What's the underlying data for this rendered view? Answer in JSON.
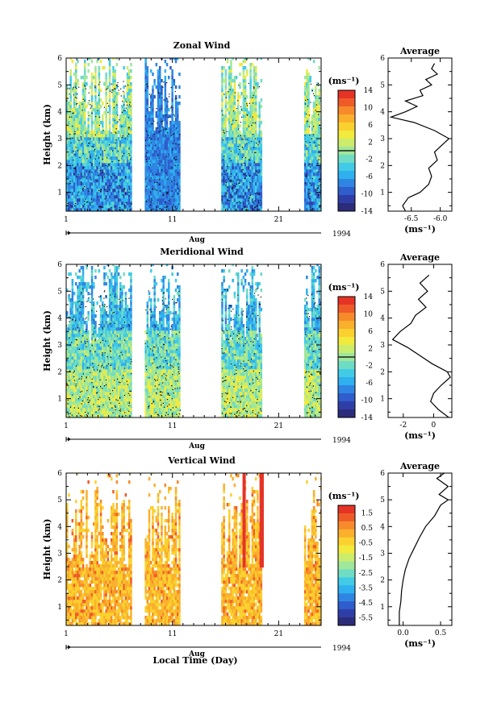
{
  "colors": {
    "scale": [
      "#2b2c7a",
      "#2f3ea7",
      "#2f5dcc",
      "#2f86e2",
      "#2fb0ef",
      "#41cbe6",
      "#6fdcc4",
      "#9fe79a",
      "#ccec6b",
      "#f2ea3d",
      "#fbd12f",
      "#fab02c",
      "#f78a2a",
      "#ef5b28",
      "#e53325"
    ],
    "avg_line": "#000000",
    "contour": "#000000"
  },
  "x_axis": {
    "month_label": "Aug",
    "year_label": "1994",
    "bottom_xlabel": "Local Time (Day)",
    "ticks": [
      "1",
      "11",
      "21"
    ],
    "range_days": [
      1,
      25
    ]
  },
  "chart_data": [
    {
      "type": "heatmap",
      "title": "Zonal Wind",
      "ylabel": "Height (km)",
      "yticks": [
        "1",
        "2",
        "3",
        "4",
        "5",
        "6"
      ],
      "ylim": [
        0.3,
        6.0
      ],
      "data_day_ranges": [
        [
          1.0,
          7.1
        ],
        [
          8.4,
          11.7
        ],
        [
          15.6,
          19.3
        ],
        [
          23.4,
          25.0
        ]
      ],
      "colorbar": {
        "unit": "(ms⁻¹)",
        "ticks": [
          "14",
          "10",
          "6",
          "2",
          "-2",
          "-6",
          "-10",
          "-14"
        ],
        "range": [
          -14,
          14
        ]
      },
      "average": {
        "title": "Average",
        "xlabel": "(ms⁻¹)",
        "xticks": [
          "-6.5",
          "-6.0"
        ],
        "xlim": [
          -6.9,
          -5.8
        ],
        "heights": [
          0.3,
          0.5,
          0.8,
          1.0,
          1.3,
          1.6,
          1.9,
          2.2,
          2.5,
          2.8,
          3.0,
          3.3,
          3.6,
          3.8,
          4.0,
          4.2,
          4.4,
          4.6,
          4.8,
          5.0,
          5.2,
          5.4,
          5.6,
          5.8
        ],
        "values": [
          -6.6,
          -6.65,
          -6.55,
          -6.35,
          -6.2,
          -6.15,
          -6.2,
          -6.05,
          -6.1,
          -5.95,
          -5.85,
          -6.1,
          -6.45,
          -6.85,
          -6.6,
          -6.4,
          -6.6,
          -6.3,
          -6.35,
          -6.15,
          -6.25,
          -6.05,
          -6.15,
          -6.1
        ]
      }
    },
    {
      "type": "heatmap",
      "title": "Meridional Wind",
      "ylabel": "Height (km)",
      "yticks": [
        "1",
        "2",
        "3",
        "4",
        "5",
        "6"
      ],
      "ylim": [
        0.3,
        6.0
      ],
      "data_day_ranges": [
        [
          1.0,
          7.1
        ],
        [
          8.4,
          11.7
        ],
        [
          15.6,
          19.3
        ],
        [
          23.4,
          25.0
        ]
      ],
      "colorbar": {
        "unit": "(ms⁻¹)",
        "ticks": [
          "14",
          "10",
          "6",
          "2",
          "-2",
          "-6",
          "-10",
          "-14"
        ],
        "range": [
          -14,
          14
        ]
      },
      "average": {
        "title": "Average",
        "xlabel": "(ms⁻¹)",
        "xticks": [
          "-2",
          "0"
        ],
        "xlim": [
          -3.0,
          1.2
        ],
        "heights": [
          0.3,
          0.6,
          0.9,
          1.2,
          1.5,
          1.8,
          2.0,
          2.3,
          2.6,
          2.9,
          3.2,
          3.5,
          3.8,
          4.1,
          4.4,
          4.7,
          5.0,
          5.3,
          5.6
        ],
        "values": [
          1.0,
          0.3,
          -0.2,
          0.0,
          0.5,
          1.1,
          0.9,
          -0.1,
          -0.9,
          -1.7,
          -2.7,
          -2.2,
          -1.5,
          -1.2,
          -0.5,
          -1.0,
          -0.4,
          -0.9,
          -0.3
        ]
      }
    },
    {
      "type": "heatmap",
      "title": "Vertical Wind",
      "ylabel": "Height (km)",
      "yticks": [
        "1",
        "2",
        "3",
        "4",
        "5",
        "6"
      ],
      "ylim": [
        0.3,
        6.0
      ],
      "data_day_ranges": [
        [
          1.0,
          7.1
        ],
        [
          8.4,
          11.7
        ],
        [
          15.6,
          19.3
        ],
        [
          23.4,
          25.0
        ]
      ],
      "colorbar": {
        "unit": "(ms⁻¹)",
        "ticks": [
          "1.5",
          "0.5",
          "-0.5",
          "-1.5",
          "-2.5",
          "-3.5",
          "-4.5",
          "-5.5"
        ],
        "range": [
          -6.0,
          2.0
        ]
      },
      "average": {
        "title": "Average",
        "xlabel": "(ms⁻¹)",
        "xticks": [
          "0.0",
          "0.5"
        ],
        "xlim": [
          -0.2,
          0.65
        ],
        "heights": [
          0.3,
          0.8,
          1.2,
          1.6,
          2.0,
          2.4,
          2.8,
          3.2,
          3.6,
          4.0,
          4.4,
          4.8,
          5.0,
          5.2,
          5.5,
          5.8,
          6.0
        ],
        "values": [
          -0.05,
          -0.05,
          -0.03,
          -0.02,
          0.0,
          0.03,
          0.08,
          0.15,
          0.22,
          0.3,
          0.42,
          0.5,
          0.6,
          0.48,
          0.6,
          0.45,
          0.55
        ]
      }
    }
  ]
}
